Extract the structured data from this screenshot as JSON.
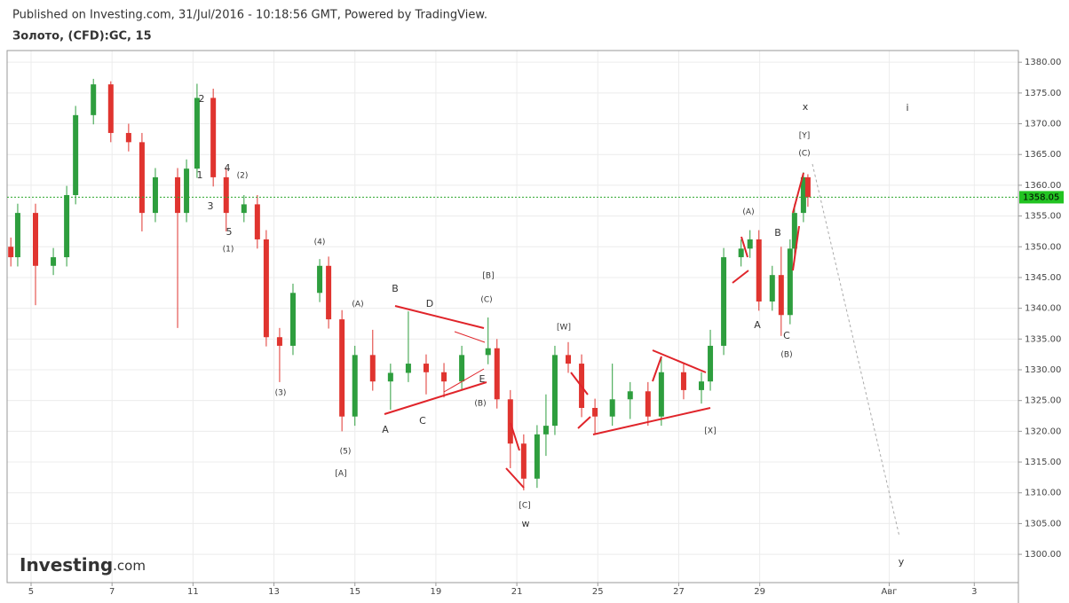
{
  "chart_data": {
    "type": "candlestick",
    "subtitle": "Published on Investing.com, 31/Jul/2016 - 10:18:56 GMT, Powered by TradingView.",
    "title": "Золото, (CFD):GC, 15",
    "source": "Investing",
    "source_suffix": ".com",
    "up_color": "#2e9e3e",
    "down_color": "#e0342f",
    "grid": true,
    "x": [
      -0.5,
      -0.33,
      0.11,
      0.55,
      0.88,
      1.1,
      1.54,
      1.97,
      2.41,
      2.74,
      3.07,
      3.62,
      3.84,
      4.1,
      4.5,
      4.82,
      5.26,
      5.59,
      5.81,
      6.14,
      6.47,
      7.13,
      7.35,
      7.68,
      8.0,
      8.44,
      8.88,
      9.32,
      9.76,
      10.2,
      10.64,
      11.29,
      11.51,
      11.84,
      12.17,
      12.5,
      12.72,
      12.94,
      13.27,
      13.6,
      13.93,
      14.36,
      14.8,
      15.24,
      15.57,
      16.12,
      16.56,
      16.78,
      17.11,
      17.54,
      17.76,
      17.98,
      18.31,
      18.53,
      18.75,
      18.86,
      19.08,
      19.19
    ],
    "open": [
      1350,
      1348.3,
      1355.5,
      1346.9,
      1348.3,
      1358.4,
      1371.4,
      1376.4,
      1368.5,
      1367.0,
      1355.5,
      1361.3,
      1355.5,
      1362.7,
      1374.2,
      1361.3,
      1355.5,
      1356.9,
      1351.2,
      1335.3,
      1333.9,
      1342.5,
      1346.9,
      1338.2,
      1322.4,
      1332.4,
      1328.1,
      1329.5,
      1331.0,
      1329.6,
      1328.1,
      1332.4,
      1333.5,
      1325.2,
      1318.0,
      1312.3,
      1319.5,
      1320.9,
      1332.4,
      1331.0,
      1323.8,
      1322.4,
      1325.2,
      1326.5,
      1322.4,
      1329.6,
      1326.7,
      1328.1,
      1333.9,
      1348.3,
      1349.7,
      1351.2,
      1341.1,
      1345.4,
      1338.9,
      1349.7,
      1355.5,
      1361.3
    ],
    "high": [
      1351.5,
      1357.0,
      1357.0,
      1349.8,
      1359.9,
      1372.9,
      1377.3,
      1376.9,
      1370.0,
      1368.5,
      1362.8,
      1362.8,
      1364.2,
      1376.5,
      1375.7,
      1362.8,
      1358.4,
      1358.4,
      1352.7,
      1336.8,
      1344.0,
      1348.0,
      1348.4,
      1339.7,
      1333.9,
      1336.5,
      1331.0,
      1339.5,
      1332.5,
      1331.1,
      1333.9,
      1338.5,
      1335.0,
      1326.7,
      1319.5,
      1321.0,
      1326.0,
      1333.9,
      1334.5,
      1332.5,
      1325.3,
      1331.0,
      1328.0,
      1328.0,
      1332.0,
      1331.1,
      1329.6,
      1336.5,
      1349.8,
      1351.2,
      1352.7,
      1352.7,
      1346.9,
      1350.0,
      1351.2,
      1357.0,
      1362.1,
      1361.8
    ],
    "low": [
      1346.8,
      1346.8,
      1340.5,
      1345.4,
      1346.8,
      1356.9,
      1369.9,
      1367.0,
      1365.5,
      1352.5,
      1354.0,
      1336.8,
      1354.0,
      1361.2,
      1359.8,
      1352.5,
      1354.0,
      1349.7,
      1333.8,
      1328.0,
      1332.4,
      1341.0,
      1336.7,
      1320.0,
      1320.9,
      1326.6,
      1323.5,
      1328.0,
      1326.0,
      1325.5,
      1326.6,
      1330.9,
      1323.7,
      1314.0,
      1310.4,
      1310.8,
      1316.0,
      1319.4,
      1329.5,
      1322.3,
      1319.5,
      1320.9,
      1322.0,
      1320.9,
      1320.9,
      1325.2,
      1324.5,
      1326.6,
      1332.4,
      1346.8,
      1348.2,
      1339.6,
      1339.6,
      1335.5,
      1337.4,
      1348.2,
      1354.0,
      1356.5
    ],
    "close": [
      1348.3,
      1355.5,
      1346.9,
      1348.3,
      1358.4,
      1371.4,
      1376.4,
      1368.5,
      1367.0,
      1355.5,
      1361.3,
      1355.5,
      1362.7,
      1374.2,
      1361.3,
      1355.5,
      1356.9,
      1351.2,
      1335.3,
      1333.9,
      1342.5,
      1346.9,
      1338.2,
      1322.4,
      1332.4,
      1328.1,
      1329.5,
      1331.0,
      1329.6,
      1328.1,
      1332.4,
      1333.5,
      1325.2,
      1318.0,
      1312.3,
      1319.5,
      1320.9,
      1332.4,
      1331.0,
      1323.8,
      1322.4,
      1325.2,
      1326.5,
      1322.4,
      1329.6,
      1326.7,
      1328.1,
      1333.9,
      1348.3,
      1349.7,
      1351.2,
      1341.1,
      1345.4,
      1338.9,
      1349.7,
      1355.5,
      1361.3,
      1358.05
    ],
    "last_price": {
      "value": 1358.05,
      "label": "1358.05"
    },
    "xlim": [
      -0.592,
      24.39
    ],
    "ylim": [
      1295.4,
      1381.9
    ],
    "xticks": [
      {
        "value": 0,
        "label": "5"
      },
      {
        "value": 2,
        "label": "7"
      },
      {
        "value": 4,
        "label": "11"
      },
      {
        "value": 6,
        "label": "13"
      },
      {
        "value": 8,
        "label": "15"
      },
      {
        "value": 10,
        "label": "19"
      },
      {
        "value": 12,
        "label": "21"
      },
      {
        "value": 14,
        "label": "25"
      },
      {
        "value": 16,
        "label": "27"
      },
      {
        "value": 18,
        "label": "29"
      },
      {
        "value": 21.2,
        "label": "Авг"
      },
      {
        "value": 23.3,
        "label": "3"
      }
    ],
    "yticks": [
      {
        "value": 1300,
        "label": "1300.00"
      },
      {
        "value": 1305,
        "label": "1305.00"
      },
      {
        "value": 1310,
        "label": "1310.00"
      },
      {
        "value": 1315,
        "label": "1315.00"
      },
      {
        "value": 1320,
        "label": "1320.00"
      },
      {
        "value": 1325,
        "label": "1325.00"
      },
      {
        "value": 1330,
        "label": "1330.00"
      },
      {
        "value": 1335,
        "label": "1335.00"
      },
      {
        "value": 1340,
        "label": "1340.00"
      },
      {
        "value": 1345,
        "label": "1345.00"
      },
      {
        "value": 1350,
        "label": "1350.00"
      },
      {
        "value": 1355,
        "label": "1355.00"
      },
      {
        "value": 1360,
        "label": "1360.00"
      },
      {
        "value": 1365,
        "label": "1365.00"
      },
      {
        "value": 1370,
        "label": "1370.00"
      },
      {
        "value": 1375,
        "label": "1375.00"
      },
      {
        "value": 1380,
        "label": "1380.00"
      }
    ],
    "annotations": [
      "2",
      "1",
      "4",
      "(2)",
      "3",
      "5",
      "(1)",
      "(4)",
      "(3)",
      "(5)",
      "[A]",
      "(A)",
      "B",
      "D",
      "A",
      "C",
      "[B]",
      "(C)",
      "E",
      "(B)",
      "[C]",
      "w",
      "[W]",
      "[X]",
      "(A)",
      "B",
      "A",
      "C",
      "(B)",
      "[Y]",
      "(C)",
      "x",
      "i",
      "y"
    ]
  }
}
